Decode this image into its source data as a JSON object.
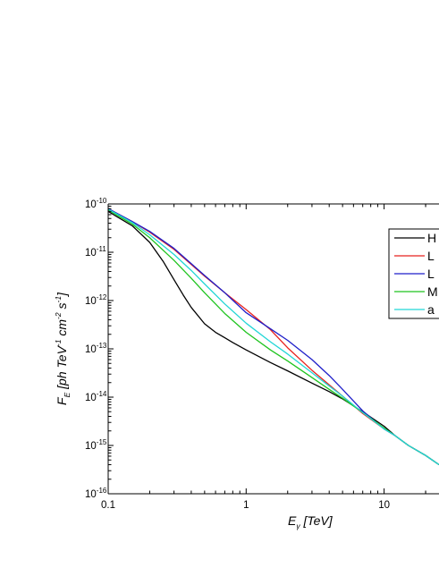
{
  "chart_data": {
    "type": "line",
    "xscale": "log",
    "yscale": "log",
    "xlim": [
      0.1,
      25
    ],
    "ylim": [
      1e-16,
      1e-10
    ],
    "xticks": [
      {
        "value": 0.1,
        "label": "0.1"
      },
      {
        "value": 1,
        "label": "1"
      },
      {
        "value": 10,
        "label": "10"
      }
    ],
    "yticks": [
      {
        "value": 1e-10,
        "base": "10",
        "exp": "-10"
      },
      {
        "value": 1e-11,
        "base": "10",
        "exp": "-11"
      },
      {
        "value": 1e-12,
        "base": "10",
        "exp": "-12"
      },
      {
        "value": 1e-13,
        "base": "10",
        "exp": "-13"
      },
      {
        "value": 1e-14,
        "base": "10",
        "exp": "-14"
      },
      {
        "value": 1e-15,
        "base": "10",
        "exp": "-15"
      },
      {
        "value": 1e-16,
        "base": "10",
        "exp": "-16"
      }
    ],
    "xlabel": {
      "main": "E",
      "sub": "γ",
      "unit": " [TeV]"
    },
    "ylabel": {
      "parts": [
        {
          "t": "F",
          "s": "base"
        },
        {
          "t": "E",
          "s": "sub"
        },
        {
          "t": " [ph TeV",
          "s": "base"
        },
        {
          "t": "-1",
          "s": "sup"
        },
        {
          "t": " cm",
          "s": "base"
        },
        {
          "t": "-2",
          "s": "sup"
        },
        {
          "t": " s",
          "s": "base"
        },
        {
          "t": "-1",
          "s": "sup"
        },
        {
          "t": "]",
          "s": "base"
        }
      ]
    },
    "grid": false,
    "legend_position": "top-right",
    "series": [
      {
        "name": "H",
        "color": "#000000",
        "x": [
          0.1,
          0.15,
          0.2,
          0.25,
          0.3,
          0.35,
          0.4,
          0.5,
          0.6,
          0.7,
          0.8,
          1.0,
          1.5,
          2.0,
          3.0,
          4.0,
          5.0,
          7.0,
          10,
          12,
          15,
          20,
          25
        ],
        "y": [
          7e-11,
          3.5e-11,
          1.6e-11,
          6.5e-12,
          2.7e-12,
          1.3e-12,
          7.2e-13,
          3.3e-13,
          2.2e-13,
          1.7e-13,
          1.35e-13,
          9.5e-14,
          5.2e-14,
          3.5e-14,
          1.95e-14,
          1.3e-14,
          9.2e-15,
          5e-15,
          2.5e-15,
          1.6e-15,
          1e-15,
          6.2e-16,
          4e-16
        ]
      },
      {
        "name": "L",
        "color": "#e8211d",
        "x": [
          0.1,
          0.15,
          0.2,
          0.3,
          0.4,
          0.5,
          0.7,
          1.0,
          1.5,
          2.0,
          3.0,
          4.0,
          5.0,
          7.0,
          10,
          12,
          15,
          20,
          25
        ],
        "y": [
          8e-11,
          4.3e-11,
          2.6e-11,
          1.15e-11,
          5.6e-12,
          3.2e-12,
          1.45e-12,
          6.5e-13,
          2.5e-13,
          1.05e-13,
          3.6e-14,
          1.8e-14,
          1.05e-14,
          4.6e-15,
          2.2e-15,
          1.6e-15,
          1e-15,
          6.2e-16,
          4e-16
        ]
      },
      {
        "name": "L",
        "color": "#1f1fc9",
        "x": [
          0.1,
          0.15,
          0.2,
          0.3,
          0.4,
          0.5,
          0.7,
          1.0,
          1.5,
          2.0,
          3.0,
          4.0,
          5.0,
          7.0,
          10,
          12,
          15,
          20,
          25
        ],
        "y": [
          8e-11,
          4.3e-11,
          2.7e-11,
          1.2e-11,
          5.8e-12,
          3.3e-12,
          1.45e-12,
          5.6e-13,
          2.6e-13,
          1.5e-13,
          6e-14,
          2.8e-14,
          1.45e-14,
          5.2e-15,
          2.2e-15,
          1.6e-15,
          1e-15,
          6.2e-16,
          4e-16
        ]
      },
      {
        "name": "M",
        "color": "#1fc41f",
        "x": [
          0.1,
          0.15,
          0.2,
          0.3,
          0.4,
          0.5,
          0.7,
          1.0,
          1.5,
          2.0,
          3.0,
          4.0,
          5.0,
          7.0,
          10,
          12,
          15,
          20,
          25
        ],
        "y": [
          7.5e-11,
          3.8e-11,
          2e-11,
          6.8e-12,
          2.9e-12,
          1.45e-12,
          5.4e-13,
          2.2e-13,
          9.5e-14,
          5.6e-14,
          2.55e-14,
          1.45e-14,
          9.5e-15,
          4.8e-15,
          2.3e-15,
          1.6e-15,
          1e-15,
          6.2e-16,
          4e-16
        ]
      },
      {
        "name": "a",
        "color": "#22d6d6",
        "x": [
          0.1,
          0.15,
          0.2,
          0.3,
          0.4,
          0.5,
          0.7,
          1.0,
          1.5,
          2.0,
          3.0,
          4.0,
          5.0,
          7.0,
          10,
          12,
          15,
          20,
          25
        ],
        "y": [
          7.8e-11,
          4.1e-11,
          2.3e-11,
          9e-12,
          4.2e-12,
          2.2e-12,
          8.5e-13,
          3.4e-13,
          1.4e-13,
          7.8e-14,
          3.2e-14,
          1.7e-14,
          1.05e-14,
          4.8e-15,
          2.2e-15,
          1.6e-15,
          1e-15,
          6.2e-16,
          4e-16
        ]
      }
    ]
  }
}
